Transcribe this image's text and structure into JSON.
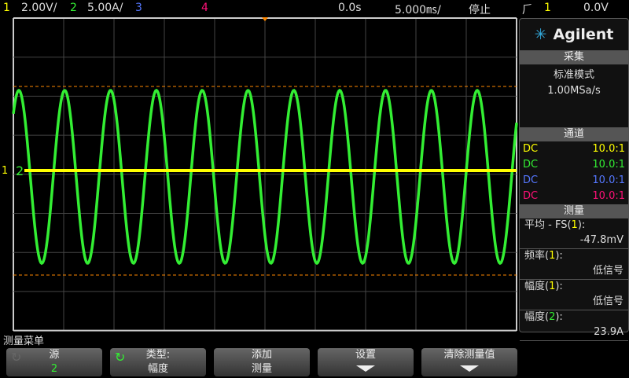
{
  "top": {
    "ch1_num": "1",
    "ch1_scale": "2.00V/",
    "ch2_num": "2",
    "ch2_scale": "5.00A/",
    "ch3_num": "3",
    "ch4_num": "4",
    "time_delay": "0.0s",
    "time_scale": "5.000㎳/",
    "run_state": "停止",
    "trig_icon": "rising-edge-icon",
    "trig_src": "1",
    "trig_level": "0.0V"
  },
  "colors": {
    "ch1": "#ffff00",
    "ch2": "#33ee33",
    "ch3": "#5577ff",
    "ch4": "#ff1177",
    "marker": "#ff8800"
  },
  "panel": {
    "brand": "Agilent",
    "acq_title": "采集",
    "acq_mode": "标准模式",
    "acq_rate": "1.00MSa/s",
    "chan_title": "通道",
    "channels": [
      {
        "coupling": "DC",
        "probe": "10.0:1"
      },
      {
        "coupling": "DC",
        "probe": "10.0:1"
      },
      {
        "coupling": "DC",
        "probe": "10.0:1"
      },
      {
        "coupling": "DC",
        "probe": "10.0:1"
      }
    ],
    "meas_title": "测量",
    "measurements": [
      {
        "label": "平均 - FS(",
        "src": "1",
        "suffix": "):",
        "value": "-47.8mV"
      },
      {
        "label": "频率(",
        "src": "1",
        "suffix": "):",
        "value": "低信号"
      },
      {
        "label": "幅度(",
        "src": "1",
        "suffix": "):",
        "value": "低信号"
      },
      {
        "label": "幅度(",
        "src": "2",
        "suffix": "):",
        "value": "23.9A"
      }
    ]
  },
  "menu": {
    "title": "测量菜单",
    "buttons": [
      {
        "top": "源",
        "bottom": "2"
      },
      {
        "top": "类型:",
        "bottom": "幅度"
      },
      {
        "top": "添加",
        "bottom": "测量"
      },
      {
        "top": "设置",
        "bottom": ""
      },
      {
        "top": "清除测量值",
        "bottom": ""
      }
    ]
  },
  "marker_labels": {
    "ch1": "1",
    "ch2": "2"
  }
}
